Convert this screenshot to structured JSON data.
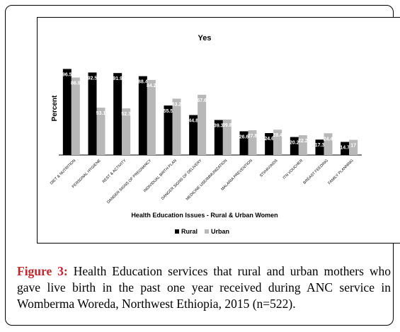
{
  "chart_data": {
    "type": "bar",
    "title": "Yes",
    "xlabel": "Health Education Issues - Rural & Urban Women",
    "ylabel": "Percent",
    "ylim": [
      0,
      100
    ],
    "grid": false,
    "legend_position": "bottom",
    "categories": [
      "DIET & NUTRITION",
      "PERSONAL HYGIENE",
      "REST & ACTIVITY",
      "DANGER SIGNS OF PREGNANCY",
      "INDIVIDUAL BIRTH PLAN",
      "DANGER SIGNS OF DELIVERY",
      "MEDICINE USE/IMMUNIZATION",
      "MALARIA PREVENTION",
      "STI/HIV/AIDS",
      "ITN VOUCHER",
      "BREAST FEEDING",
      "FAMILY PLANNING"
    ],
    "series": [
      {
        "name": "Rural",
        "color": "#000000",
        "values": [
          96.5,
          92.5,
          91.9,
          88.4,
          55.5,
          44.8,
          39.3,
          26.6,
          24.6,
          20.2,
          17.3,
          14.7
        ]
      },
      {
        "name": "Urban",
        "color": "#b8b8b8",
        "values": [
          86.9,
          53.1,
          52.3,
          84.2,
          63.2,
          67.6,
          39.8,
          27.8,
          28.4,
          22.2,
          24.4,
          17.0
        ]
      }
    ],
    "value_labels": {
      "Rural": [
        "96.5",
        "92.5",
        "91.9",
        "88.4",
        "55.5",
        "44.8",
        "39.3",
        "26.6",
        "24.6",
        "20.2",
        "17.3",
        "14.7"
      ],
      "Urban": [
        "86.9",
        "53.1",
        "52.3",
        "84.2",
        "63.2",
        "67.6",
        "39.8",
        "27.8",
        "28.4",
        "22.2",
        "24.4",
        "17"
      ]
    }
  },
  "caption": {
    "label": "Figure 3:",
    "text": " Health Education services that rural and urban mothers who gave live birth in the past one year received during ANC service in Womberma Woreda, Northwest Ethiopia, 2015 (n=522)."
  }
}
